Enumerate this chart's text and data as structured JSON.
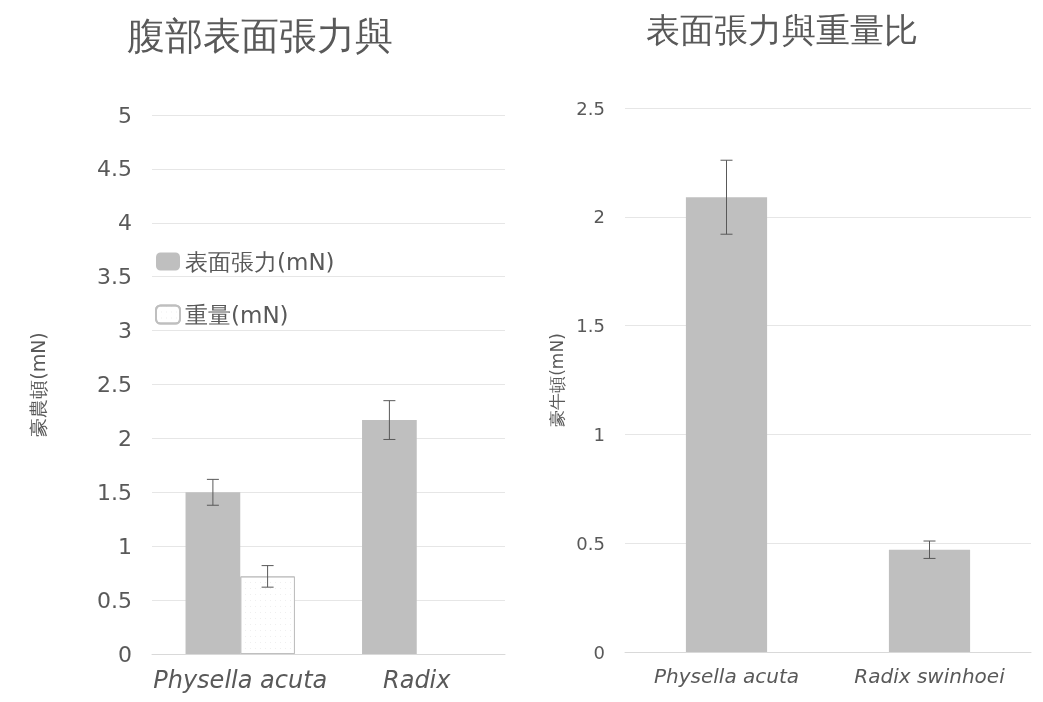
{
  "chart_data": [
    {
      "type": "bar",
      "title": "腹部表面張力與",
      "ylabel": "豪農頓(mN)",
      "categories": [
        "Physella acuta",
        "Radix"
      ],
      "series": [
        {
          "name": "表面張力(mN)",
          "color": "#bfbfbf",
          "values": [
            1.5,
            2.17
          ],
          "errors": [
            0.12,
            0.18
          ]
        },
        {
          "name": "重量(mN)",
          "color": "#ffffff",
          "values": [
            0.72,
            null
          ],
          "errors": [
            0.1,
            null
          ]
        }
      ],
      "ylim": [
        0,
        5
      ],
      "yticks": [
        0,
        0.5,
        1,
        1.5,
        2,
        2.5,
        3,
        3.5,
        4,
        4.5,
        5
      ],
      "grid": "y",
      "legend": "top left"
    },
    {
      "type": "bar",
      "title": "表面張力與重量比",
      "ylabel": "豪牛頓(mN)",
      "categories": [
        "Physella acuta",
        "Radix swinhoei"
      ],
      "series": [
        {
          "color": "#bfbfbf",
          "values": [
            2.09,
            0.47
          ],
          "errors": [
            0.17,
            0.04
          ]
        }
      ],
      "ylim": [
        0,
        2.5
      ],
      "yticks": [
        0,
        0.5,
        1,
        1.5,
        2,
        2.5
      ],
      "grid": "y"
    }
  ]
}
